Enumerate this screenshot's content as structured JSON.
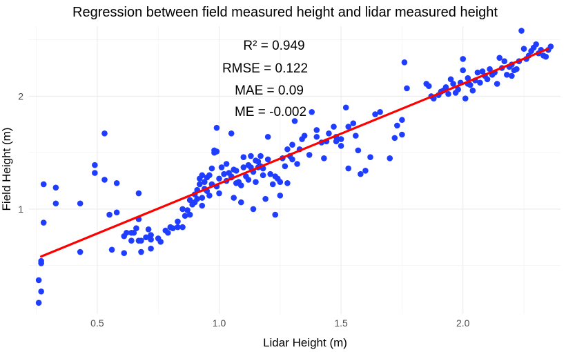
{
  "chart_data": {
    "type": "scatter",
    "title": "Regression between field measured height and lidar measured height",
    "xlabel": "Lidar Height (m)",
    "ylabel": "Field Height (m)",
    "xlim": [
      0.22,
      2.4
    ],
    "ylim": [
      0.07,
      2.62
    ],
    "x_ticks": [
      0.5,
      1.0,
      1.5,
      2.0
    ],
    "x_tick_labels": [
      "0.5",
      "1.0",
      "1.5",
      "2.0"
    ],
    "y_ticks": [
      1,
      2
    ],
    "y_tick_labels": [
      "1",
      "2"
    ],
    "grid": true,
    "annotations": [
      {
        "label": "R² = ",
        "value": "0.949"
      },
      {
        "label": "RMSE = ",
        "value": "0.122"
      },
      {
        "label": "MAE = ",
        "value": "0.09"
      },
      {
        "label": "ME = ",
        "value": "-0.002"
      }
    ],
    "regression_line": {
      "x": [
        0.27,
        2.35
      ],
      "y": [
        0.58,
        2.42
      ],
      "color": "#ff0000"
    },
    "point_color": "#1f3dff",
    "points": [
      [
        0.26,
        0.17
      ],
      [
        0.26,
        0.37
      ],
      [
        0.27,
        0.27
      ],
      [
        0.27,
        0.52
      ],
      [
        0.27,
        0.54
      ],
      [
        0.28,
        0.88
      ],
      [
        0.28,
        1.22
      ],
      [
        0.33,
        1.05
      ],
      [
        0.33,
        1.19
      ],
      [
        0.43,
        1.05
      ],
      [
        0.43,
        0.62
      ],
      [
        0.49,
        1.39
      ],
      [
        0.49,
        1.32
      ],
      [
        0.53,
        1.67
      ],
      [
        0.53,
        1.26
      ],
      [
        0.55,
        0.95
      ],
      [
        0.56,
        0.64
      ],
      [
        0.58,
        1.23
      ],
      [
        0.58,
        0.97
      ],
      [
        0.61,
        0.61
      ],
      [
        0.61,
        0.76
      ],
      [
        0.62,
        0.79
      ],
      [
        0.64,
        0.79
      ],
      [
        0.64,
        0.72
      ],
      [
        0.65,
        0.79
      ],
      [
        0.66,
        0.83
      ],
      [
        0.67,
        0.91
      ],
      [
        0.67,
        1.14
      ],
      [
        0.67,
        0.72
      ],
      [
        0.68,
        0.72
      ],
      [
        0.68,
        0.62
      ],
      [
        0.7,
        0.75
      ],
      [
        0.71,
        0.82
      ],
      [
        0.72,
        0.65
      ],
      [
        0.72,
        0.77
      ],
      [
        0.72,
        0.73
      ],
      [
        0.75,
        0.74
      ],
      [
        0.78,
        0.81
      ],
      [
        0.79,
        0.79
      ],
      [
        0.8,
        0.84
      ],
      [
        0.81,
        0.83
      ],
      [
        0.83,
        0.89
      ],
      [
        0.83,
        0.84
      ],
      [
        0.85,
        0.84
      ],
      [
        0.86,
        0.94
      ],
      [
        0.87,
        0.99
      ],
      [
        0.88,
        0.95
      ],
      [
        0.88,
        1.08
      ],
      [
        0.89,
        1.04
      ],
      [
        0.9,
        1.06
      ],
      [
        0.9,
        1.13
      ],
      [
        0.91,
        1.17
      ],
      [
        0.91,
        1.09
      ],
      [
        0.92,
        1.22
      ],
      [
        0.92,
        1.27
      ],
      [
        0.93,
        1.1
      ],
      [
        0.93,
        1.03
      ],
      [
        0.94,
        1.24
      ],
      [
        0.94,
        1.18
      ],
      [
        0.95,
        1.16
      ],
      [
        0.95,
        1.28
      ],
      [
        0.96,
        1.3
      ],
      [
        0.96,
        1.12
      ],
      [
        0.97,
        1.22
      ],
      [
        0.97,
        1.36
      ],
      [
        0.98,
        1.52
      ],
      [
        0.98,
        1.5
      ],
      [
        0.99,
        1.72
      ],
      [
        0.99,
        1.2
      ],
      [
        1.0,
        1.14
      ],
      [
        1.0,
        1.27
      ],
      [
        1.01,
        1.37
      ],
      [
        1.02,
        1.31
      ],
      [
        1.03,
        1.25
      ],
      [
        1.03,
        1.4
      ],
      [
        1.04,
        1.32
      ],
      [
        1.05,
        1.67
      ],
      [
        1.05,
        1.29
      ],
      [
        1.06,
        1.1
      ],
      [
        1.06,
        1.35
      ],
      [
        1.07,
        1.23
      ],
      [
        1.07,
        1.34
      ],
      [
        1.08,
        1.24
      ],
      [
        1.09,
        1.21
      ],
      [
        1.1,
        1.37
      ],
      [
        1.1,
        1.46
      ],
      [
        1.11,
        1.29
      ],
      [
        1.12,
        1.39
      ],
      [
        1.12,
        1.26
      ],
      [
        1.13,
        1.37
      ],
      [
        1.13,
        1.47
      ],
      [
        1.14,
        1.33
      ],
      [
        1.14,
        1.0
      ],
      [
        1.15,
        1.43
      ],
      [
        1.15,
        1.24
      ],
      [
        1.16,
        1.42
      ],
      [
        1.16,
        1.37
      ],
      [
        1.17,
        1.38
      ],
      [
        1.17,
        1.47
      ],
      [
        1.18,
        1.3
      ],
      [
        1.19,
        1.09
      ],
      [
        1.2,
        1.64
      ],
      [
        1.2,
        1.44
      ],
      [
        1.21,
        1.31
      ],
      [
        1.22,
        1.22
      ],
      [
        1.23,
        0.95
      ],
      [
        1.23,
        1.29
      ],
      [
        1.24,
        1.27
      ],
      [
        1.25,
        1.24
      ],
      [
        1.25,
        1.12
      ],
      [
        1.26,
        1.45
      ],
      [
        1.27,
        1.38
      ],
      [
        1.28,
        1.23
      ],
      [
        1.28,
        1.53
      ],
      [
        1.29,
        1.47
      ],
      [
        1.3,
        1.44
      ],
      [
        1.3,
        1.57
      ],
      [
        1.31,
        1.78
      ],
      [
        1.32,
        1.4
      ],
      [
        1.33,
        1.53
      ],
      [
        1.34,
        1.62
      ],
      [
        1.35,
        1.65
      ],
      [
        1.37,
        1.48
      ],
      [
        1.38,
        1.86
      ],
      [
        1.4,
        1.7
      ],
      [
        1.4,
        1.64
      ],
      [
        1.42,
        1.59
      ],
      [
        1.43,
        1.45
      ],
      [
        1.44,
        1.6
      ],
      [
        1.45,
        1.67
      ],
      [
        1.47,
        1.73
      ],
      [
        1.48,
        1.64
      ],
      [
        1.48,
        1.6
      ],
      [
        1.5,
        1.56
      ],
      [
        1.5,
        1.62
      ],
      [
        1.52,
        1.9
      ],
      [
        1.53,
        1.73
      ],
      [
        1.53,
        1.36
      ],
      [
        1.55,
        1.76
      ],
      [
        1.56,
        1.65
      ],
      [
        1.57,
        1.52
      ],
      [
        1.58,
        1.31
      ],
      [
        1.6,
        1.34
      ],
      [
        1.62,
        1.46
      ],
      [
        1.64,
        1.84
      ],
      [
        1.66,
        1.86
      ],
      [
        1.7,
        1.45
      ],
      [
        1.72,
        1.63
      ],
      [
        1.73,
        1.74
      ],
      [
        1.75,
        1.66
      ],
      [
        1.75,
        1.79
      ],
      [
        1.76,
        2.3
      ],
      [
        1.77,
        2.07
      ],
      [
        1.85,
        2.11
      ],
      [
        1.86,
        2.09
      ],
      [
        1.87,
        2.0
      ],
      [
        1.88,
        1.98
      ],
      [
        1.9,
        2.01
      ],
      [
        1.91,
        2.04
      ],
      [
        1.92,
        2.05
      ],
      [
        1.93,
        2.08
      ],
      [
        1.94,
        2.02
      ],
      [
        1.95,
        2.15
      ],
      [
        1.96,
        2.11
      ],
      [
        1.97,
        2.03
      ],
      [
        1.98,
        2.06
      ],
      [
        1.99,
        2.12
      ],
      [
        2.0,
        2.23
      ],
      [
        2.0,
        2.33
      ],
      [
        2.01,
        1.98
      ],
      [
        2.02,
        2.16
      ],
      [
        2.03,
        2.1
      ],
      [
        2.04,
        2.05
      ],
      [
        2.05,
        2.14
      ],
      [
        2.06,
        2.21
      ],
      [
        2.07,
        2.12
      ],
      [
        2.08,
        2.22
      ],
      [
        2.09,
        2.18
      ],
      [
        2.1,
        2.15
      ],
      [
        2.11,
        2.24
      ],
      [
        2.12,
        2.19
      ],
      [
        2.13,
        2.21
      ],
      [
        2.14,
        2.11
      ],
      [
        2.15,
        2.34
      ],
      [
        2.16,
        2.25
      ],
      [
        2.17,
        2.31
      ],
      [
        2.18,
        2.19
      ],
      [
        2.19,
        2.26
      ],
      [
        2.2,
        2.28
      ],
      [
        2.21,
        2.23
      ],
      [
        2.22,
        2.24
      ],
      [
        2.23,
        2.31
      ],
      [
        2.24,
        2.58
      ],
      [
        2.25,
        2.42
      ],
      [
        2.26,
        2.33
      ],
      [
        2.27,
        2.36
      ],
      [
        2.28,
        2.4
      ],
      [
        2.29,
        2.43
      ],
      [
        2.3,
        2.46
      ],
      [
        2.31,
        2.38
      ],
      [
        2.32,
        2.41
      ],
      [
        2.33,
        2.36
      ],
      [
        2.34,
        2.35
      ],
      [
        2.35,
        2.41
      ],
      [
        2.36,
        2.44
      ],
      [
        2.2,
        2.18
      ],
      [
        2.02,
        2.11
      ],
      [
        1.09,
        1.06
      ],
      [
        1.18,
        1.36
      ],
      [
        0.99,
        1.51
      ],
      [
        1.05,
        1.28
      ],
      [
        0.93,
        1.3
      ],
      [
        0.85,
        1.0
      ],
      [
        0.76,
        0.71
      ]
    ]
  }
}
